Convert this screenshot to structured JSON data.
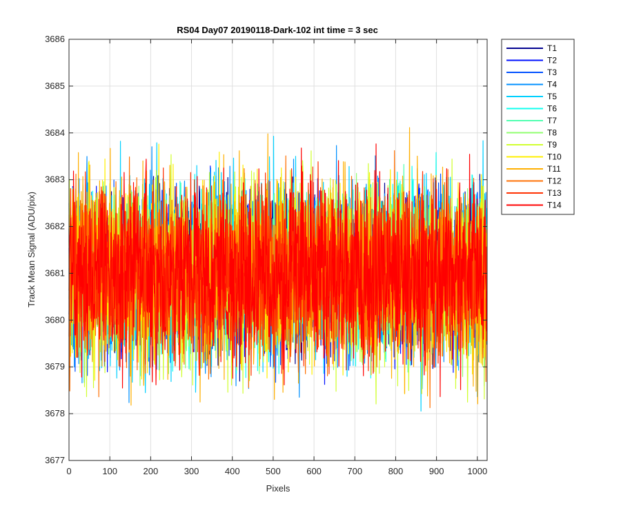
{
  "chart_data": {
    "type": "line",
    "title": "RS04 Day07 20190118-Dark-102 int time = 3 sec",
    "xlabel": "Pixels",
    "ylabel": "Track Mean Signal (ADU/pix)",
    "xlim": [
      0,
      1024
    ],
    "ylim": [
      3677,
      3686
    ],
    "xticks": [
      "0",
      "100",
      "200",
      "300",
      "400",
      "500",
      "600",
      "700",
      "800",
      "900",
      "1000"
    ],
    "yticks": [
      "3677",
      "3678",
      "3679",
      "3680",
      "3681",
      "3682",
      "3683",
      "3684",
      "3685",
      "3686"
    ],
    "grid": true,
    "legend_position": "outside-top-right",
    "n_points_per_series": 1024,
    "series": [
      {
        "name": "T1",
        "color": "#00008f",
        "mean": 3681.0,
        "min": 3678.2,
        "max": 3684.7
      },
      {
        "name": "T2",
        "color": "#0010ff",
        "mean": 3681.0,
        "min": 3678.3,
        "max": 3684.6
      },
      {
        "name": "T3",
        "color": "#0050ff",
        "mean": 3681.0,
        "min": 3678.4,
        "max": 3684.5
      },
      {
        "name": "T4",
        "color": "#0090ff",
        "mean": 3681.0,
        "min": 3677.8,
        "max": 3684.8
      },
      {
        "name": "T5",
        "color": "#00d0ff",
        "mean": 3681.0,
        "min": 3677.8,
        "max": 3685.0
      },
      {
        "name": "T6",
        "color": "#10ffef",
        "mean": 3681.0,
        "min": 3678.2,
        "max": 3684.5
      },
      {
        "name": "T7",
        "color": "#50ffaf",
        "mean": 3681.0,
        "min": 3678.5,
        "max": 3684.3
      },
      {
        "name": "T8",
        "color": "#90ff6f",
        "mean": 3681.0,
        "min": 3678.3,
        "max": 3684.2
      },
      {
        "name": "T9",
        "color": "#d0ff2f",
        "mean": 3681.0,
        "min": 3677.7,
        "max": 3685.1
      },
      {
        "name": "T10",
        "color": "#ffef00",
        "mean": 3681.0,
        "min": 3678.0,
        "max": 3684.4
      },
      {
        "name": "T11",
        "color": "#ffaf00",
        "mean": 3681.0,
        "min": 3677.6,
        "max": 3684.6
      },
      {
        "name": "T12",
        "color": "#ff6f00",
        "mean": 3681.0,
        "min": 3678.0,
        "max": 3684.6
      },
      {
        "name": "T13",
        "color": "#ff2f00",
        "mean": 3681.0,
        "min": 3678.1,
        "max": 3684.2
      },
      {
        "name": "T14",
        "color": "#ff0000",
        "mean": 3681.0,
        "min": 3677.3,
        "max": 3684.3
      }
    ]
  }
}
